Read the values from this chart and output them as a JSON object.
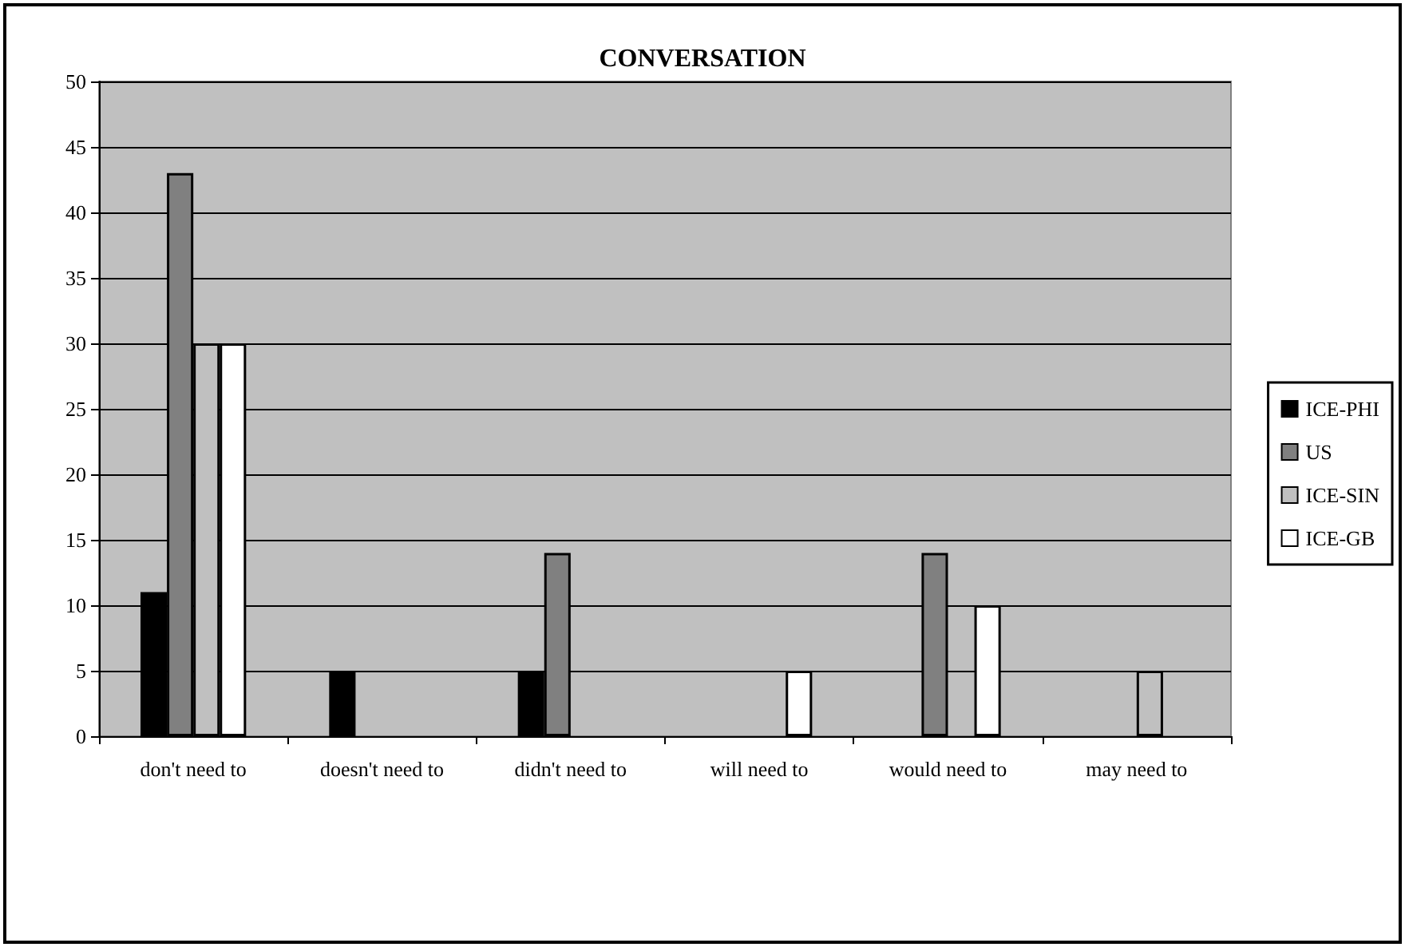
{
  "chart_data": {
    "type": "bar",
    "title": "CONVERSATION",
    "categories": [
      "don't need to",
      "doesn't need to",
      "didn't need to",
      "will need to",
      "would need to",
      "may need to"
    ],
    "series": [
      {
        "name": "ICE-PHI",
        "color": "#000000",
        "values": [
          11,
          5,
          5,
          null,
          null,
          null
        ]
      },
      {
        "name": "US",
        "color": "#808080",
        "values": [
          43,
          null,
          14,
          null,
          14,
          null
        ]
      },
      {
        "name": "ICE-SIN",
        "color": "#c0c0c0",
        "values": [
          30,
          null,
          null,
          null,
          null,
          5
        ]
      },
      {
        "name": "ICE-GB",
        "color": "#ffffff",
        "values": [
          30,
          null,
          null,
          5,
          10,
          null
        ]
      }
    ],
    "ylim": [
      0,
      50
    ],
    "yticks": [
      0,
      5,
      10,
      15,
      20,
      25,
      30,
      35,
      40,
      45,
      50
    ],
    "grid": "y",
    "legend": "right"
  }
}
